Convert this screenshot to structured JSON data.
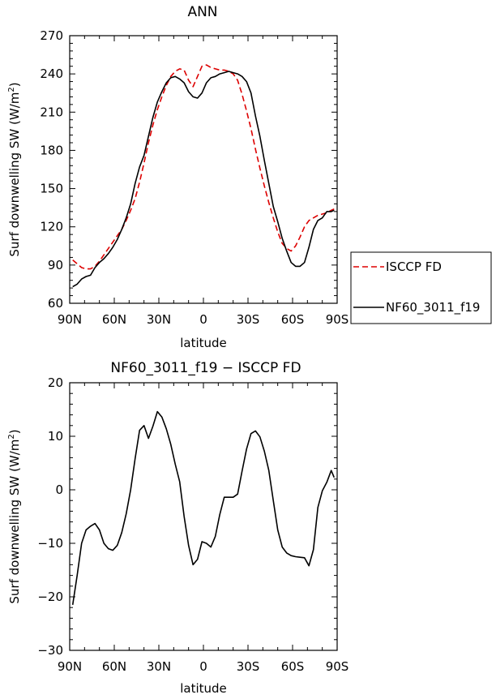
{
  "chart_data": [
    {
      "type": "line",
      "title": "ANN",
      "xlabel": "latitude",
      "ylabel": "Surf downwelling SW (W/m²)",
      "ylabel_main": "Surf downwelling SW (W/m",
      "ylabel_sup": "2",
      "ylabel_end": ")",
      "xlim": [
        90,
        -90
      ],
      "ylim": [
        60,
        270
      ],
      "x_ticks": [
        90,
        60,
        30,
        0,
        -30,
        -60,
        -90
      ],
      "x_tick_labels": [
        "90N",
        "60N",
        "30N",
        "0",
        "30S",
        "60S",
        "90S"
      ],
      "y_ticks": [
        60,
        90,
        120,
        150,
        180,
        210,
        240,
        270
      ],
      "y_tick_labels": [
        "60",
        "90",
        "120",
        "150",
        "180",
        "210",
        "240",
        "270"
      ],
      "legend": {
        "placement": "right"
      },
      "series": [
        {
          "name": "ISCCP FD",
          "color": "#dd0000",
          "dash": "dashed",
          "x": [
            88,
            85,
            82,
            79,
            76,
            73,
            70,
            67,
            64,
            61,
            58,
            55,
            52,
            49,
            46,
            43,
            40,
            37,
            34,
            31,
            28,
            25,
            22,
            19,
            16,
            13,
            10,
            7,
            4,
            1,
            -2,
            -5,
            -8,
            -11,
            -14,
            -17,
            -20,
            -23,
            -26,
            -29,
            -32,
            -35,
            -38,
            -41,
            -44,
            -47,
            -50,
            -53,
            -56,
            -59,
            -62,
            -65,
            -68,
            -71,
            -74,
            -77,
            -80,
            -83,
            -86,
            -88
          ],
          "y": [
            94,
            91,
            88,
            87,
            87,
            89,
            93,
            98,
            103,
            108,
            113,
            118,
            125,
            133,
            142,
            155,
            170,
            186,
            200,
            212,
            222,
            231,
            238,
            242,
            244,
            243,
            235,
            230,
            238,
            246,
            247,
            245,
            244,
            243,
            243,
            242,
            240,
            235,
            224,
            211,
            197,
            181,
            166,
            152,
            139,
            127,
            116,
            107,
            103,
            101,
            105,
            112,
            120,
            125,
            127,
            129,
            130,
            131,
            133,
            134
          ]
        },
        {
          "name": "NF60_3011_f19",
          "color": "#000000",
          "dash": "solid",
          "x": [
            88,
            85,
            82,
            79,
            76,
            73,
            70,
            67,
            64,
            61,
            58,
            55,
            52,
            49,
            46,
            43,
            40,
            37,
            34,
            31,
            28,
            25,
            22,
            19,
            16,
            13,
            10,
            7,
            4,
            1,
            -2,
            -5,
            -8,
            -11,
            -14,
            -17,
            -20,
            -23,
            -26,
            -29,
            -32,
            -35,
            -38,
            -41,
            -44,
            -47,
            -50,
            -53,
            -56,
            -59,
            -62,
            -65,
            -68,
            -71,
            -74,
            -77,
            -80,
            -83,
            -86,
            -88
          ],
          "y": [
            73,
            75,
            79,
            81,
            82,
            88,
            92,
            95,
            99,
            104,
            110,
            118,
            127,
            138,
            154,
            167,
            176,
            191,
            206,
            218,
            226,
            233,
            237,
            238,
            236,
            233,
            226,
            222,
            221,
            225,
            233,
            237,
            238,
            240,
            241,
            242,
            241,
            240,
            238,
            234,
            225,
            207,
            191,
            172,
            154,
            136,
            124,
            111,
            101,
            92,
            89,
            89,
            92,
            104,
            118,
            125,
            127,
            132,
            132,
            133
          ]
        }
      ]
    },
    {
      "type": "line",
      "title": "NF60_3011_f19 − ISCCP FD",
      "xlabel": "latitude",
      "ylabel": "Surf downwelling SW (W/m²)",
      "ylabel_main": "Surf downwelling SW (W/m",
      "ylabel_sup": "2",
      "ylabel_end": ")",
      "xlim": [
        90,
        -90
      ],
      "ylim": [
        -30,
        20
      ],
      "x_ticks": [
        90,
        60,
        30,
        0,
        -30,
        -60,
        -90
      ],
      "x_tick_labels": [
        "90N",
        "60N",
        "30N",
        "0",
        "30S",
        "60S",
        "90S"
      ],
      "y_ticks": [
        -30,
        -20,
        -10,
        0,
        10,
        20
      ],
      "y_tick_labels": [
        "−30",
        "−20",
        "−10",
        "0",
        "10",
        "20"
      ],
      "series": [
        {
          "color": "#000000",
          "x": [
            88,
            85,
            82,
            79,
            76,
            73,
            70,
            67,
            64,
            61,
            58,
            55,
            52,
            49,
            46,
            43,
            40,
            37,
            34,
            31,
            28,
            25,
            22,
            19,
            16,
            13,
            10,
            7,
            4,
            1,
            -2,
            -5,
            -8,
            -11,
            -14,
            -17,
            -20,
            -23,
            -26,
            -29,
            -32,
            -35,
            -38,
            -41,
            -44,
            -47,
            -50,
            -53,
            -56,
            -59,
            -62,
            -65,
            -68,
            -71,
            -74,
            -77,
            -80,
            -83,
            -86,
            -88
          ],
          "y": [
            -21.5,
            -16,
            -10,
            -7.5,
            -6.8,
            -6.3,
            -7.5,
            -10,
            -11,
            -11.3,
            -10.4,
            -8,
            -4.5,
            0,
            5.8,
            11.1,
            12,
            9.6,
            11.9,
            14.6,
            13.6,
            11.4,
            8.5,
            4.8,
            1.5,
            -5,
            -10.4,
            -14,
            -13,
            -9.7,
            -10,
            -10.7,
            -8.7,
            -4.6,
            -1.4,
            -1.4,
            -1.4,
            -0.8,
            3.5,
            7.6,
            10.5,
            11,
            9.9,
            7.2,
            3.6,
            -2,
            -7.5,
            -10.7,
            -11.8,
            -12.3,
            -12.5,
            -12.6,
            -12.7,
            -14.2,
            -11.2,
            -3.3,
            -0.2,
            1.4,
            3.6,
            2.3
          ]
        }
      ]
    }
  ]
}
